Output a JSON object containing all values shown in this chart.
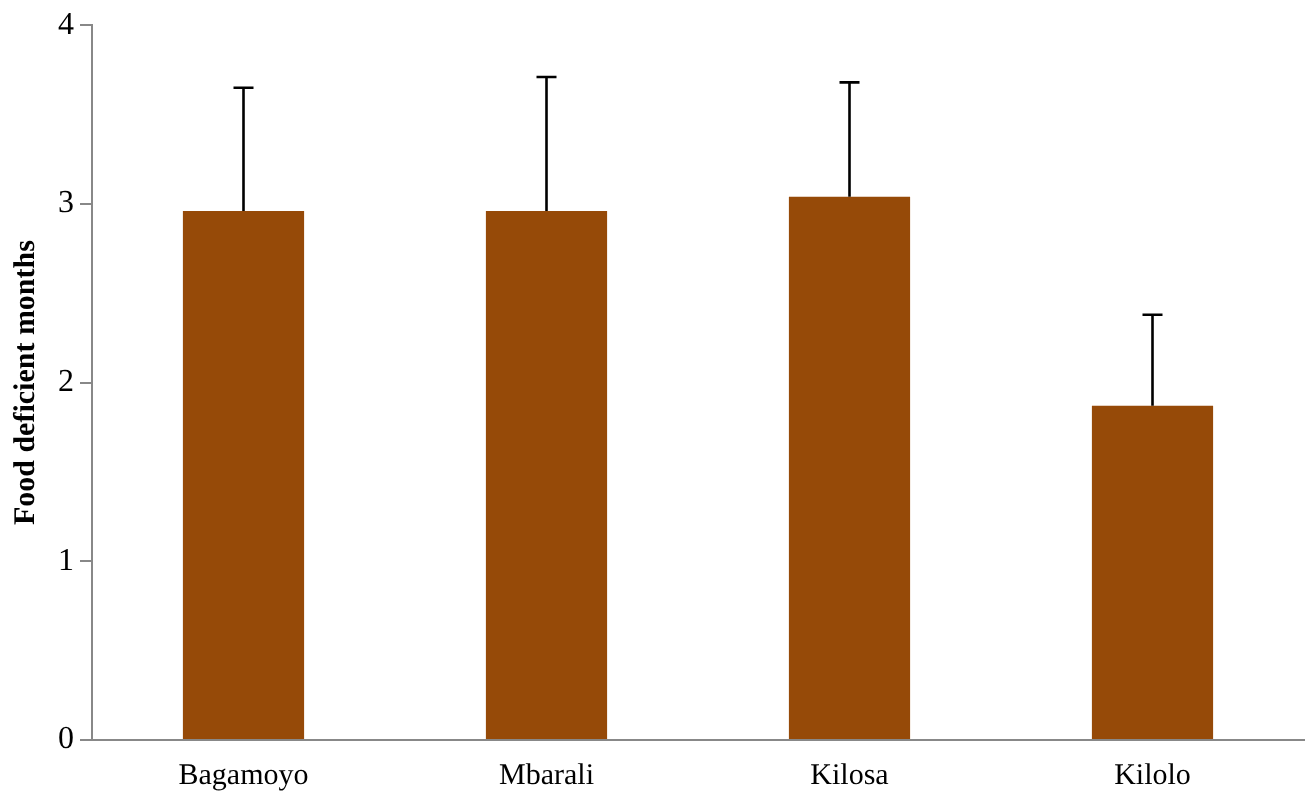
{
  "chart_data": {
    "type": "bar",
    "ylabel": "Food deficient months",
    "categories": [
      "Bagamoyo",
      "Mbarali",
      "Kilosa",
      "Kilolo"
    ],
    "values": [
      2.96,
      2.96,
      3.04,
      1.87
    ],
    "errors": [
      [
        2.96,
        3.65
      ],
      [
        2.96,
        3.71
      ],
      [
        3.04,
        3.68
      ],
      [
        1.87,
        2.38
      ]
    ],
    "color": "#964a08",
    "ylim": [
      0,
      4
    ],
    "yticks": [
      0,
      1,
      2,
      3,
      4
    ],
    "grid": false,
    "legend": false
  }
}
